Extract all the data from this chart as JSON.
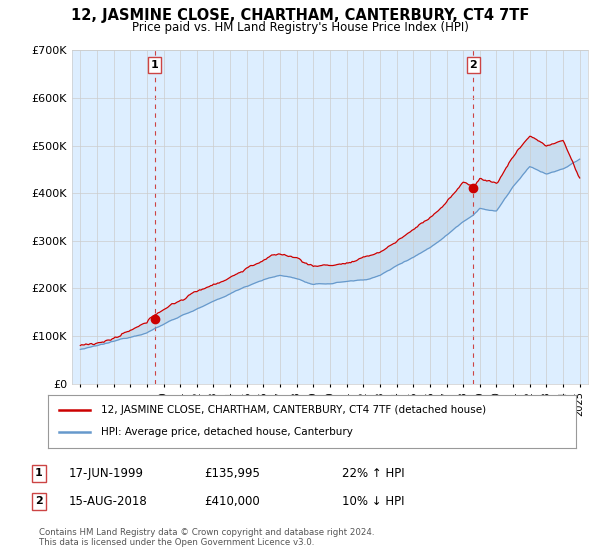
{
  "title": "12, JASMINE CLOSE, CHARTHAM, CANTERBURY, CT4 7TF",
  "subtitle": "Price paid vs. HM Land Registry's House Price Index (HPI)",
  "legend_line1": "12, JASMINE CLOSE, CHARTHAM, CANTERBURY, CT4 7TF (detached house)",
  "legend_line2": "HPI: Average price, detached house, Canterbury",
  "sale1_date": "17-JUN-1999",
  "sale1_price": "£135,995",
  "sale1_hpi": "22% ↑ HPI",
  "sale2_date": "15-AUG-2018",
  "sale2_price": "£410,000",
  "sale2_hpi": "10% ↓ HPI",
  "footer": "Contains HM Land Registry data © Crown copyright and database right 2024.\nThis data is licensed under the Open Government Licence v3.0.",
  "red_color": "#cc0000",
  "blue_color": "#6699cc",
  "fill_blue_color": "#c8ddf0",
  "vline_color": "#cc4444",
  "grid_color": "#cccccc",
  "background_color": "#ffffff",
  "plot_bg_color": "#ddeeff",
  "ylim": [
    0,
    700000
  ],
  "yticks": [
    0,
    100000,
    200000,
    300000,
    400000,
    500000,
    600000,
    700000
  ],
  "ytick_labels": [
    "£0",
    "£100K",
    "£200K",
    "£300K",
    "£400K",
    "£500K",
    "£600K",
    "£700K"
  ],
  "sale1_year": 1999.46,
  "sale1_price_val": 135995,
  "sale2_year": 2018.62,
  "sale2_price_val": 410000,
  "hpi_anchors_x": [
    1995,
    1996,
    1997,
    1998,
    1999,
    2000,
    2001,
    2002,
    2003,
    2004,
    2005,
    2006,
    2007,
    2008,
    2009,
    2010,
    2011,
    2012,
    2013,
    2014,
    2015,
    2016,
    2017,
    2018,
    2018.62,
    2019,
    2020,
    2021,
    2022,
    2023,
    2024,
    2025
  ],
  "hpi_anchors_y": [
    72000,
    78000,
    86000,
    96000,
    108000,
    125000,
    143000,
    158000,
    172000,
    188000,
    205000,
    220000,
    228000,
    222000,
    208000,
    210000,
    215000,
    218000,
    228000,
    248000,
    268000,
    288000,
    315000,
    345000,
    360000,
    375000,
    368000,
    420000,
    460000,
    445000,
    455000,
    475000
  ],
  "red_anchors_x": [
    1995,
    1996,
    1997,
    1998,
    1999,
    1999.46,
    2000,
    2001,
    2002,
    2003,
    2004,
    2005,
    2006,
    2007,
    2008,
    2009,
    2010,
    2011,
    2012,
    2013,
    2014,
    2015,
    2016,
    2017,
    2018,
    2018.62,
    2019,
    2020,
    2021,
    2022,
    2023,
    2024,
    2025
  ],
  "red_anchors_y": [
    80000,
    87000,
    96000,
    108000,
    120000,
    135995,
    152000,
    170000,
    188000,
    205000,
    222000,
    242000,
    260000,
    270000,
    262000,
    245000,
    248000,
    253000,
    258000,
    272000,
    295000,
    320000,
    346000,
    380000,
    418000,
    410000,
    430000,
    418000,
    475000,
    520000,
    500000,
    510000,
    430000
  ]
}
